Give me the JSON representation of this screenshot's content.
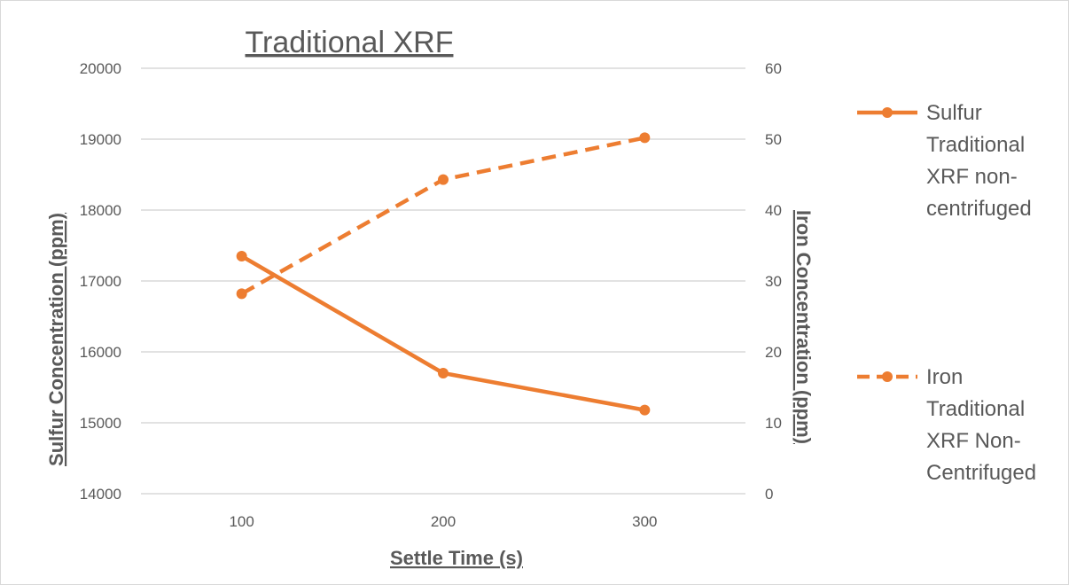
{
  "chart_data": {
    "type": "line",
    "title": "Traditional XRF",
    "xlabel": "Settle Time (s)",
    "ylabel": "Sulfur Concentration (ppm)",
    "y2label": "Iron Concentration (ppm)",
    "categories": [
      "100",
      "200",
      "300"
    ],
    "ylim": [
      14000,
      20000
    ],
    "y_ticks": [
      "14000",
      "15000",
      "16000",
      "17000",
      "18000",
      "19000",
      "20000"
    ],
    "y2lim": [
      0,
      60
    ],
    "y2_ticks": [
      "0",
      "10",
      "20",
      "30",
      "40",
      "50",
      "60"
    ],
    "grid": true,
    "legend_position": "right",
    "series": [
      {
        "name": "Sulfur Traditional XRF non-centrifuged",
        "legend_lines": [
          "Sulfur",
          "Traditional",
          "XRF non-",
          "centrifuged"
        ],
        "axis": "left",
        "values": [
          17350,
          15700,
          15180
        ],
        "color": "#ed7d31",
        "style": "solid"
      },
      {
        "name": "Iron Traditional XRF Non-Centrifuged",
        "legend_lines": [
          "Iron",
          "Traditional",
          "XRF Non-",
          "Centrifuged"
        ],
        "axis": "right",
        "values": [
          28.2,
          44.3,
          50.2
        ],
        "color": "#ed7d31",
        "style": "dashed"
      }
    ]
  }
}
